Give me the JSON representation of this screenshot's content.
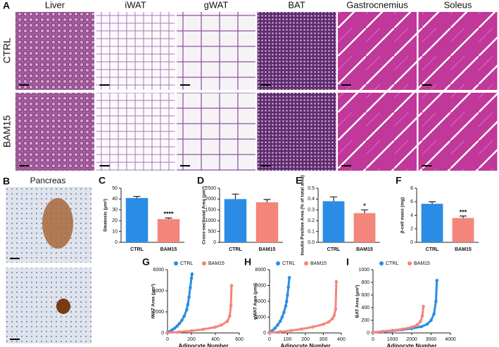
{
  "panel_a": {
    "label": "A",
    "columns": [
      "Liver",
      "iWAT",
      "gWAT",
      "BAT",
      "Gastrocnemius",
      "Soleus"
    ],
    "rows": [
      "CTRL",
      "BAM15"
    ]
  },
  "panel_b": {
    "label": "B",
    "title": "Pancreas"
  },
  "chart_data": [
    {
      "type": "bar",
      "label": "C",
      "ylabel": "Steatosis (μm²)",
      "categories": [
        "CTRL",
        "BAM15"
      ],
      "values": [
        41,
        21.5
      ],
      "errors": [
        1.5,
        1
      ],
      "colors": [
        "#2b8ce6",
        "#f4857a"
      ],
      "ylim": [
        0,
        50
      ],
      "yticks": [
        0,
        10,
        20,
        30,
        40,
        50
      ],
      "significance": "****"
    },
    {
      "type": "bar",
      "label": "D",
      "ylabel": "Cross-sectional Area (μm²)",
      "categories": [
        "CTRL",
        "BAM15"
      ],
      "values": [
        2000,
        1850
      ],
      "errors": [
        230,
        130
      ],
      "colors": [
        "#2b8ce6",
        "#f4857a"
      ],
      "ylim": [
        0,
        2500
      ],
      "yticks": [
        0,
        500,
        1000,
        1500,
        2000,
        2500
      ]
    },
    {
      "type": "bar",
      "label": "E",
      "ylabel": "Insulin Positive Area (% of total area)",
      "categories": [
        "CTRL",
        "BAM15"
      ],
      "values": [
        0.38,
        0.27
      ],
      "errors": [
        0.04,
        0.03
      ],
      "colors": [
        "#2b8ce6",
        "#f4857a"
      ],
      "ylim": [
        0,
        0.5
      ],
      "yticks": [
        {
          "value": 0,
          "label": "0.0"
        },
        0.1,
        0.2,
        0.3,
        0.4,
        0.5
      ],
      "significance": "*"
    },
    {
      "type": "bar",
      "label": "F",
      "ylabel": "β-cell mass (mg)",
      "categories": [
        "CTRL",
        "BAM15"
      ],
      "values": [
        5.7,
        3.6
      ],
      "errors": [
        0.3,
        0.3
      ],
      "colors": [
        "#2b8ce6",
        "#f4857a"
      ],
      "ylim": [
        0,
        8
      ],
      "yticks": [
        0,
        2,
        4,
        6,
        8
      ],
      "significance": "***"
    },
    {
      "type": "scatter",
      "label": "G",
      "xlabel": "Adipocyte Number",
      "ylabel": "iWAT Area (μm²)",
      "xlim": [
        0,
        600
      ],
      "xticks": [
        0,
        200,
        400,
        600
      ],
      "ylim": [
        0,
        6000
      ],
      "yticks": [
        0,
        2000,
        4000,
        6000
      ],
      "series": [
        {
          "name": "CTRL",
          "color": "#2b8ce6",
          "x": [
            0,
            20,
            40,
            60,
            80,
            100,
            120,
            140,
            160,
            170,
            180,
            190,
            200,
            205
          ],
          "values": [
            50,
            150,
            300,
            450,
            650,
            900,
            1200,
            1600,
            2200,
            2700,
            3400,
            4300,
            5200,
            5600
          ]
        },
        {
          "name": "BAM15",
          "color": "#f4857a",
          "x": [
            0,
            100,
            200,
            300,
            400,
            450,
            500,
            520,
            530,
            535
          ],
          "values": [
            20,
            100,
            200,
            350,
            550,
            750,
            1100,
            1600,
            2600,
            4500
          ]
        }
      ]
    },
    {
      "type": "scatter",
      "label": "H",
      "xlabel": "Adipocyte Number",
      "ylabel": "gWAT Area (μm²)",
      "xlim": [
        0,
        400
      ],
      "xticks": [
        0,
        100,
        200,
        300,
        400
      ],
      "ylim": [
        0,
        8000
      ],
      "yticks": [
        0,
        2000,
        4000,
        6000,
        8000
      ],
      "series": [
        {
          "name": "CTRL",
          "color": "#2b8ce6",
          "x": [
            0,
            15,
            30,
            45,
            60,
            70,
            80,
            90,
            95,
            100,
            105,
            110
          ],
          "values": [
            100,
            300,
            600,
            1000,
            1500,
            2000,
            2600,
            3400,
            4000,
            4800,
            5800,
            7000
          ]
        },
        {
          "name": "BAM15",
          "color": "#f4857a",
          "x": [
            0,
            60,
            120,
            180,
            240,
            300,
            330,
            350,
            360,
            368,
            372
          ],
          "values": [
            50,
            150,
            300,
            500,
            750,
            1100,
            1400,
            1800,
            2200,
            3000,
            6500
          ]
        }
      ]
    },
    {
      "type": "scatter",
      "label": "I",
      "xlabel": "Adipocyte Number",
      "ylabel": "BAT Area (μm²)",
      "xlim": [
        0,
        4000
      ],
      "xticks": [
        0,
        1000,
        2000,
        3000,
        4000
      ],
      "ylim": [
        0,
        1000
      ],
      "yticks": [
        0,
        200,
        400,
        600,
        800,
        1000
      ],
      "series": [
        {
          "name": "CTRL",
          "color": "#2b8ce6",
          "x": [
            0,
            500,
            1000,
            1500,
            2000,
            2500,
            2800,
            3000,
            3150,
            3250,
            3300
          ],
          "values": [
            10,
            20,
            35,
            50,
            70,
            100,
            140,
            200,
            300,
            500,
            830
          ]
        },
        {
          "name": "BAM15",
          "color": "#f4857a",
          "x": [
            0,
            500,
            1000,
            1500,
            2000,
            2300,
            2450,
            2550,
            2600
          ],
          "values": [
            10,
            25,
            40,
            60,
            90,
            130,
            180,
            270,
            420
          ]
        }
      ]
    }
  ]
}
